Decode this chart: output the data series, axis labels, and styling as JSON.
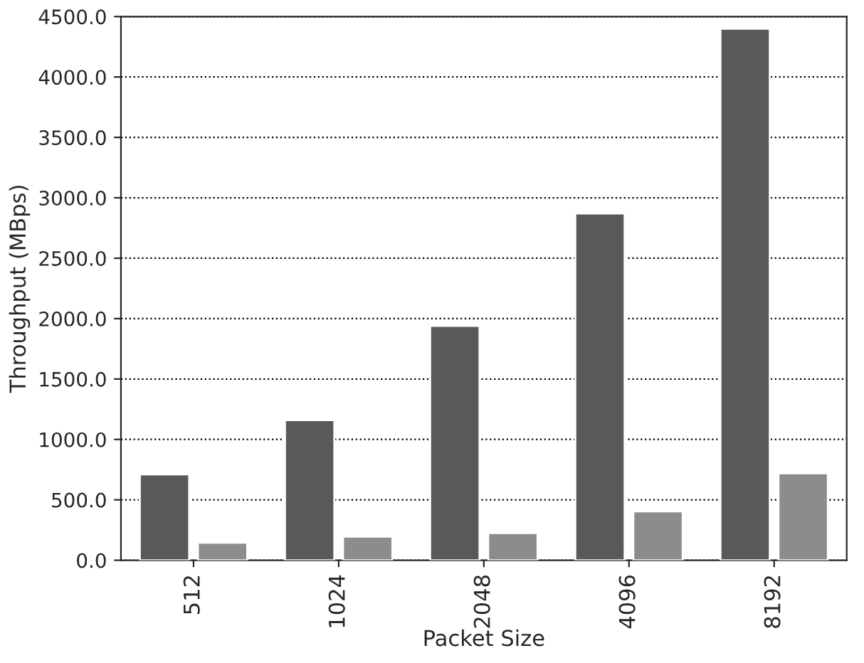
{
  "chart_data": {
    "type": "bar",
    "xlabel": "Packet Size",
    "ylabel": "Throughput (MBps)",
    "categories": [
      "512",
      "1024",
      "2048",
      "4096",
      "8192"
    ],
    "series": [
      {
        "color": "#595959",
        "values": [
          710,
          1160,
          1940,
          2870,
          4400
        ]
      },
      {
        "color": "#8c8c8c",
        "values": [
          145,
          195,
          225,
          405,
          720
        ]
      }
    ],
    "ylim": [
      0,
      4500
    ],
    "yticks": [
      {
        "value": 0,
        "label": "0.0"
      },
      {
        "value": 500,
        "label": "500.0"
      },
      {
        "value": 1000,
        "label": "1000.0"
      },
      {
        "value": 1500,
        "label": "1500.0"
      },
      {
        "value": 2000,
        "label": "2000.0"
      },
      {
        "value": 2500,
        "label": "2500.0"
      },
      {
        "value": 3000,
        "label": "3000.0"
      },
      {
        "value": 3500,
        "label": "3500.0"
      },
      {
        "value": 4000,
        "label": "4000.0"
      },
      {
        "value": 4500,
        "label": "4500.0"
      }
    ],
    "grid": "y",
    "legend": false
  }
}
